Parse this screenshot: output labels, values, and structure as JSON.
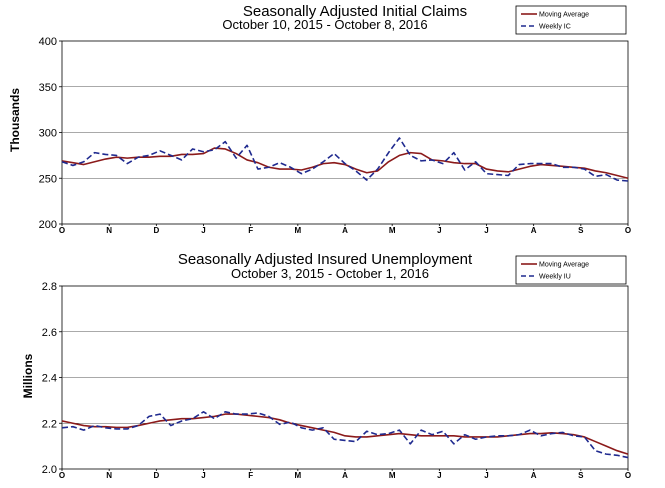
{
  "chart_data": [
    {
      "type": "line",
      "title": "Seasonally Adjusted Initial Claims",
      "subtitle": "October 10, 2015  -  October 8, 2016",
      "ylabel": "Thousands",
      "ylim": [
        200,
        400
      ],
      "yticks": [
        "200",
        "250",
        "300",
        "350",
        "400"
      ],
      "ytick_values": [
        200,
        250,
        300,
        350,
        400
      ],
      "xticks": [
        "O",
        "N",
        "D",
        "J",
        "F",
        "M",
        "A",
        "M",
        "J",
        "J",
        "A",
        "S",
        "O"
      ],
      "grid": "horizontal",
      "legend_position": "top-right",
      "colors": {
        "moving_average": "#8b1a1a",
        "weekly": "#1f2a8f"
      },
      "series": [
        {
          "name": "Moving Average",
          "style": "solid",
          "values": [
            269,
            267,
            265,
            268,
            271,
            273,
            272,
            273,
            273,
            274,
            274,
            276,
            276,
            277,
            283,
            282,
            277,
            270,
            267,
            262,
            260,
            260,
            259,
            262,
            266,
            267,
            265,
            260,
            256,
            258,
            268,
            275,
            278,
            277,
            270,
            269,
            267,
            266,
            266,
            260,
            258,
            257,
            260,
            263,
            265,
            264,
            263,
            262,
            261,
            258,
            256,
            253,
            250
          ]
        },
        {
          "name": "Weekly IC",
          "style": "dashed",
          "values": [
            268,
            264,
            268,
            278,
            276,
            275,
            266,
            273,
            275,
            280,
            275,
            270,
            282,
            279,
            281,
            290,
            272,
            286,
            260,
            262,
            267,
            262,
            255,
            260,
            268,
            277,
            266,
            258,
            248,
            260,
            278,
            294,
            275,
            269,
            270,
            266,
            278,
            259,
            268,
            255,
            254,
            253,
            265,
            266,
            266,
            266,
            262,
            262,
            260,
            252,
            254,
            248,
            247
          ]
        }
      ]
    },
    {
      "type": "line",
      "title": "Seasonally Adjusted Insured Unemployment",
      "subtitle": "October 3, 2015  -  October 1, 2016",
      "ylabel": "Millions",
      "ylim": [
        2.0,
        2.8
      ],
      "yticks": [
        "2.0",
        "2.2",
        "2.4",
        "2.6",
        "2.8"
      ],
      "ytick_values": [
        2.0,
        2.2,
        2.4,
        2.6,
        2.8
      ],
      "xticks": [
        "O",
        "N",
        "D",
        "J",
        "F",
        "M",
        "A",
        "M",
        "J",
        "J",
        "A",
        "S",
        "O"
      ],
      "grid": "horizontal",
      "legend_position": "top-right",
      "colors": {
        "moving_average": "#8b1a1a",
        "weekly": "#1f2a8f"
      },
      "series": [
        {
          "name": "Moving Average",
          "style": "solid",
          "values": [
            2.21,
            2.2,
            2.19,
            2.185,
            2.185,
            2.182,
            2.182,
            2.19,
            2.2,
            2.21,
            2.215,
            2.22,
            2.22,
            2.225,
            2.23,
            2.24,
            2.24,
            2.235,
            2.23,
            2.225,
            2.215,
            2.2,
            2.19,
            2.18,
            2.17,
            2.16,
            2.145,
            2.14,
            2.14,
            2.145,
            2.15,
            2.155,
            2.15,
            2.145,
            2.145,
            2.145,
            2.145,
            2.14,
            2.14,
            2.14,
            2.14,
            2.145,
            2.15,
            2.155,
            2.155,
            2.158,
            2.155,
            2.15,
            2.14,
            2.12,
            2.1,
            2.08,
            2.065
          ]
        },
        {
          "name": "Weekly IU",
          "style": "dashed",
          "values": [
            2.18,
            2.185,
            2.17,
            2.19,
            2.18,
            2.175,
            2.175,
            2.19,
            2.23,
            2.24,
            2.19,
            2.21,
            2.22,
            2.25,
            2.22,
            2.25,
            2.24,
            2.24,
            2.245,
            2.23,
            2.195,
            2.205,
            2.18,
            2.17,
            2.18,
            2.13,
            2.125,
            2.12,
            2.165,
            2.15,
            2.155,
            2.17,
            2.11,
            2.17,
            2.15,
            2.165,
            2.11,
            2.15,
            2.13,
            2.14,
            2.145,
            2.145,
            2.15,
            2.17,
            2.145,
            2.155,
            2.16,
            2.145,
            2.14,
            2.08,
            2.065,
            2.06,
            2.05
          ]
        }
      ]
    }
  ]
}
